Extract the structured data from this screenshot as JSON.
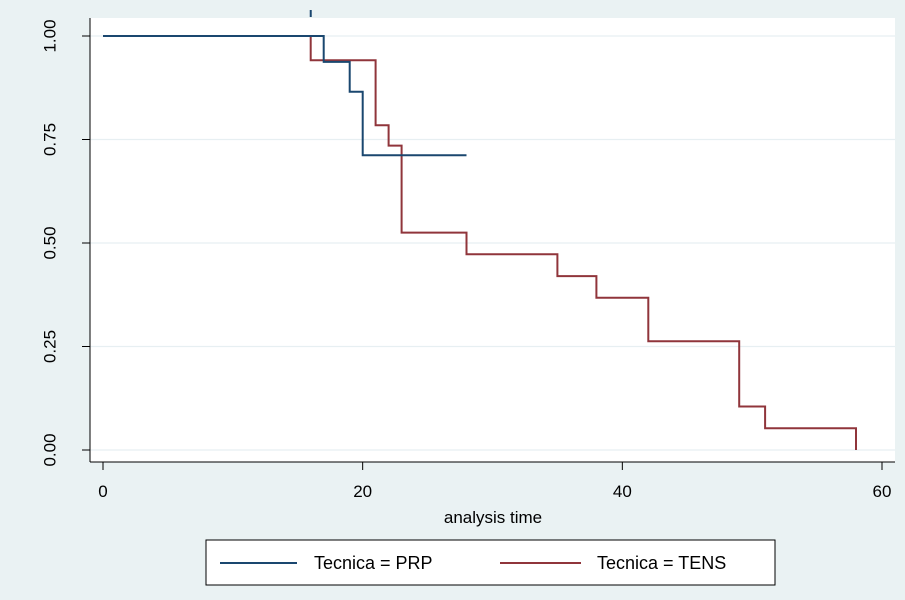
{
  "chart_data": {
    "type": "line",
    "step": true,
    "xlabel": "analysis time",
    "ylabel": "",
    "xlim": [
      0,
      60
    ],
    "ylim": [
      0,
      1
    ],
    "x_ticks": [
      {
        "value": 0,
        "label": "0"
      },
      {
        "value": 20,
        "label": "20"
      },
      {
        "value": 40,
        "label": "40"
      },
      {
        "value": 60,
        "label": "60"
      }
    ],
    "y_ticks": [
      {
        "value": 0,
        "label": "0.00"
      },
      {
        "value": 0.25,
        "label": "0.25"
      },
      {
        "value": 0.5,
        "label": "0.50"
      },
      {
        "value": 0.75,
        "label": "0.75"
      },
      {
        "value": 1,
        "label": "1.00"
      }
    ],
    "grid": "horizontal",
    "legend_position": "bottom",
    "series": [
      {
        "name": "Tecnica = PRP",
        "color": "#1a476f",
        "points": [
          [
            0,
            1
          ],
          [
            17,
            1
          ],
          [
            17,
            0.9375
          ],
          [
            19,
            0.9375
          ],
          [
            19,
            0.8654
          ],
          [
            20,
            0.8654
          ],
          [
            20,
            0.7121
          ],
          [
            28,
            0.7121
          ]
        ]
      },
      {
        "name": "Tecnica = TENS",
        "color": "#90353b",
        "points": [
          [
            0,
            1
          ],
          [
            16,
            1
          ],
          [
            16,
            0.9412
          ],
          [
            21,
            0.9412
          ],
          [
            21,
            0.7843
          ],
          [
            22,
            0.7843
          ],
          [
            22,
            0.7353
          ],
          [
            23,
            0.7353
          ],
          [
            23,
            0.5252
          ],
          [
            28,
            0.5252
          ],
          [
            28,
            0.4727
          ],
          [
            35,
            0.4727
          ],
          [
            35,
            0.4201
          ],
          [
            38,
            0.4201
          ],
          [
            38,
            0.3676
          ],
          [
            42,
            0.3676
          ],
          [
            42,
            0.2626
          ],
          [
            49,
            0.2626
          ],
          [
            49,
            0.105
          ],
          [
            51,
            0.105
          ],
          [
            51,
            0.0525
          ],
          [
            58,
            0.0525
          ],
          [
            58,
            0
          ]
        ]
      }
    ]
  }
}
